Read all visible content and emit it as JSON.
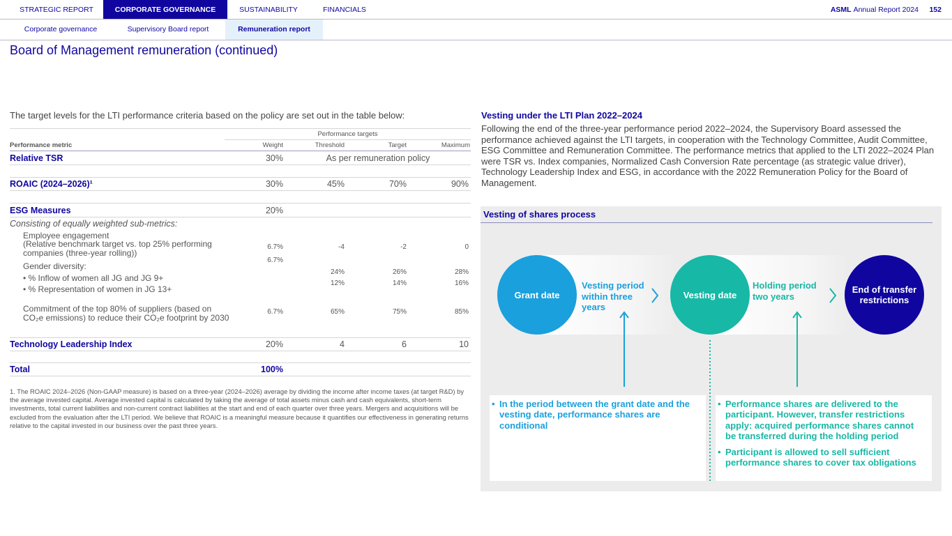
{
  "nav": {
    "tabs": [
      "STRATEGIC REPORT",
      "CORPORATE GOVERNANCE",
      "SUSTAINABILITY",
      "FINANCIALS"
    ],
    "brand": "ASML",
    "report": "Annual Report 2024",
    "page": "152",
    "subtabs": [
      "Corporate governance",
      "Supervisory Board report",
      "Remuneration report"
    ]
  },
  "title": "Board of Management remuneration (continued)",
  "intro": "The target levels for the LTI performance criteria based on the policy are set out in the table below:",
  "table": {
    "group_header": "Performance targets",
    "columns": [
      "Performance metric",
      "Weight",
      "Threshold",
      "Target",
      "Maximum"
    ],
    "rows": [
      [
        "Relative TSR",
        "30%",
        "As per remuneration policy"
      ],
      [
        "ROAIC (2024–2026)¹",
        "30%",
        "45%",
        "70%",
        "90%"
      ],
      [
        "ESG Measures",
        "20%"
      ],
      [
        "Consisting of equally weighted sub-metrics:"
      ],
      [
        "Employee engagement\n(Relative benchmark target vs. top 25% performing companies (three-year rolling))",
        "6.7%",
        "-4",
        "-2",
        "0"
      ],
      [
        "Gender diversity:",
        "6.7%"
      ],
      [
        "• % Inflow of women all JG and JG 9+",
        null,
        "24%",
        "26%",
        "28%"
      ],
      [
        "• % Representation of women in JG 13+",
        null,
        "12%",
        "14%",
        "16%"
      ],
      [
        "Commitment of the top 80% of suppliers (based on CO₂e emissions) to reduce their CO₂e footprint by 2030",
        "6.7%",
        "65%",
        "75%",
        "85%"
      ],
      [
        "Technology Leadership Index",
        "20%",
        "4",
        "6",
        "10"
      ],
      [
        "Total",
        "100%"
      ]
    ]
  },
  "footnote": "1. The ROAIC 2024–2026 (Non-GAAP measure) is based on a three-year (2024–2026) average by dividing the income after income taxes (at target R&D) by the average invested capital. Average invested capital is calculated by taking the average of total assets minus cash and cash equivalents, short-term investments, total current liabilities and non-current contract liabilities at the start and end of each quarter over three years. Mergers and acquisitions will be excluded from the evaluation after the LTI period. We believe that ROAIC is a meaningful measure because it quantifies our effectiveness in generating returns relative to the capital invested in our business over the past three years.",
  "vesting": {
    "heading": "Vesting under the LTI Plan 2022–2024",
    "text": "Following the end of the three-year performance period 2022–2024, the Supervisory Board assessed the performance achieved against the LTI targets, in cooperation with the Technology Committee, Audit Committee, ESG Committee and Remuneration Committee. The performance metrics that applied to the LTI 2022–2024 Plan were TSR vs. Index companies, Normalized Cash Conversion Rate percentage (as strategic value driver), Technology Leadership Index and ESG, in accordance with the 2022 Remuneration Policy for the Board of Management."
  },
  "diagram": {
    "title": "Vesting of shares process",
    "stages": [
      "Grant date",
      "Vesting date",
      "End of transfer restrictions"
    ],
    "periods": [
      "Vesting period within three years",
      "Holding period two years"
    ],
    "notes": [
      [
        "In the period between the grant date and the vesting date, performance shares are conditional"
      ],
      [
        "Performance shares are delivered to the participant. However, transfer restrictions apply: acquired performance shares cannot be transferred during the holding period",
        "Participant is allowed to sell sufficient performance shares to cover tax obligations"
      ]
    ]
  }
}
